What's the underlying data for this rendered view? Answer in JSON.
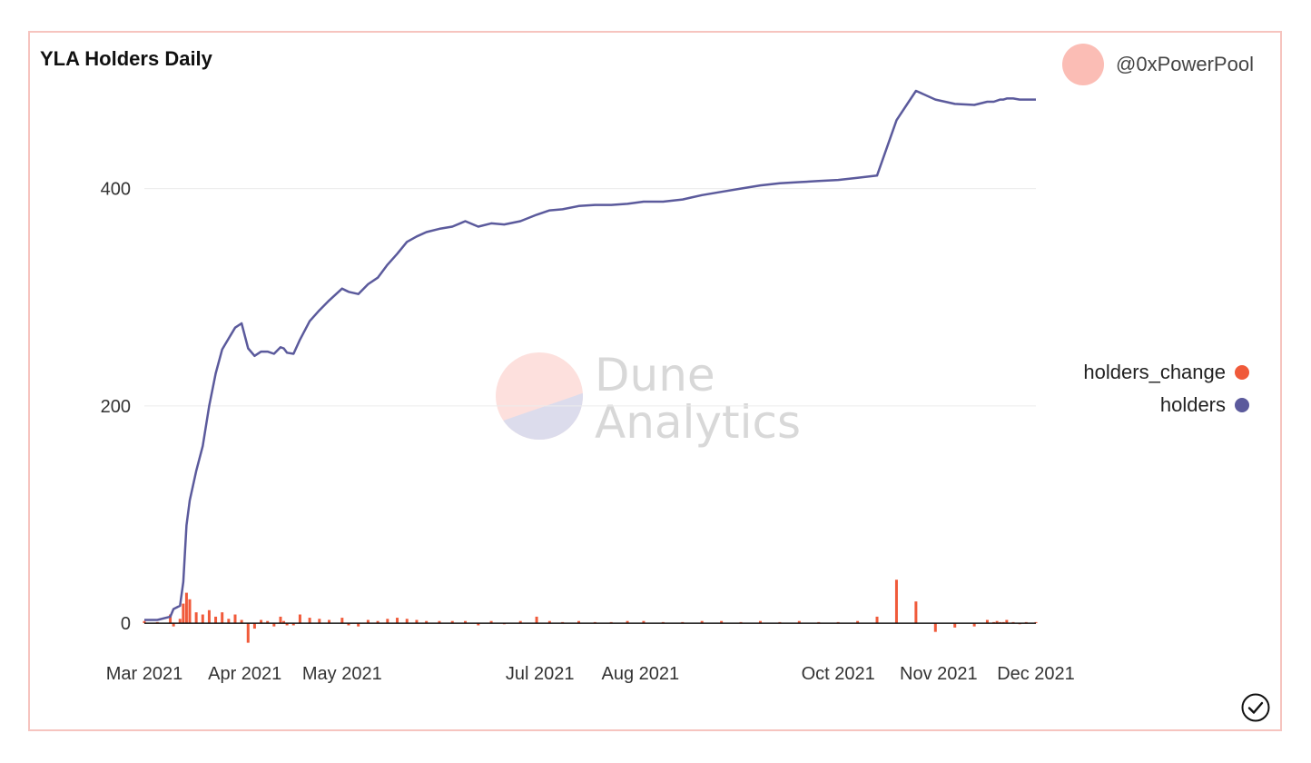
{
  "header": {
    "title": "YLA Holders Daily"
  },
  "author": {
    "name": "@0xPowerPool"
  },
  "watermark": {
    "line1": "Dune",
    "line2": "Analytics"
  },
  "legend": {
    "items": [
      {
        "label": "holders_change",
        "color": "#f05a3a"
      },
      {
        "label": "holders",
        "color": "#5b5a9c"
      }
    ]
  },
  "chart_data": {
    "type": "line",
    "title": "YLA Holders Daily",
    "xlabel": "",
    "ylabel": "",
    "ylim": [
      -20,
      490
    ],
    "xlim": [
      "2021-03-01",
      "2021-12-01"
    ],
    "grid": true,
    "legend_position": "right",
    "yticks": [
      0,
      200,
      400
    ],
    "xticks": [
      "2021-03-01",
      "2021-04-01",
      "2021-05-01",
      "2021-07-01",
      "2021-08-01",
      "2021-10-01",
      "2021-11-01",
      "2021-12-01"
    ],
    "xtick_labels": [
      "Mar 2021",
      "Apr 2021",
      "May 2021",
      "Jul 2021",
      "Aug 2021",
      "Oct 2021",
      "Nov 2021",
      "Dec 2021"
    ],
    "series": [
      {
        "name": "holders",
        "type": "line",
        "color": "#5b5a9c",
        "x": [
          "2021-03-01",
          "2021-03-05",
          "2021-03-09",
          "2021-03-10",
          "2021-03-12",
          "2021-03-13",
          "2021-03-14",
          "2021-03-15",
          "2021-03-17",
          "2021-03-19",
          "2021-03-21",
          "2021-03-23",
          "2021-03-25",
          "2021-03-27",
          "2021-03-29",
          "2021-03-31",
          "2021-04-02",
          "2021-04-04",
          "2021-04-06",
          "2021-04-08",
          "2021-04-10",
          "2021-04-12",
          "2021-04-13",
          "2021-04-14",
          "2021-04-16",
          "2021-04-18",
          "2021-04-21",
          "2021-04-24",
          "2021-04-27",
          "2021-05-01",
          "2021-05-03",
          "2021-05-06",
          "2021-05-09",
          "2021-05-12",
          "2021-05-15",
          "2021-05-18",
          "2021-05-21",
          "2021-05-24",
          "2021-05-27",
          "2021-05-31",
          "2021-06-04",
          "2021-06-08",
          "2021-06-12",
          "2021-06-16",
          "2021-06-20",
          "2021-06-25",
          "2021-06-30",
          "2021-07-04",
          "2021-07-08",
          "2021-07-13",
          "2021-07-18",
          "2021-07-23",
          "2021-07-28",
          "2021-08-02",
          "2021-08-08",
          "2021-08-14",
          "2021-08-20",
          "2021-08-26",
          "2021-09-01",
          "2021-09-07",
          "2021-09-13",
          "2021-09-19",
          "2021-09-25",
          "2021-10-01",
          "2021-10-07",
          "2021-10-13",
          "2021-10-19",
          "2021-10-25",
          "2021-10-31",
          "2021-11-06",
          "2021-11-12",
          "2021-11-16",
          "2021-11-18",
          "2021-11-19",
          "2021-11-20",
          "2021-11-21",
          "2021-11-22",
          "2021-11-24",
          "2021-11-26",
          "2021-11-28",
          "2021-12-01"
        ],
        "values": [
          3,
          3,
          6,
          13,
          16,
          38,
          90,
          113,
          140,
          163,
          200,
          230,
          252,
          262,
          272,
          276,
          253,
          246,
          250,
          250,
          248,
          254,
          253,
          249,
          248,
          261,
          278,
          288,
          297,
          308,
          305,
          303,
          312,
          318,
          330,
          340,
          351,
          356,
          360,
          363,
          365,
          370,
          365,
          368,
          367,
          370,
          376,
          380,
          381,
          384,
          385,
          385,
          386,
          388,
          388,
          390,
          394,
          397,
          400,
          403,
          405,
          406,
          407,
          408,
          410,
          412,
          463,
          490,
          482,
          478,
          477,
          480,
          480,
          481,
          482,
          482,
          483,
          483,
          482,
          482,
          482
        ]
      },
      {
        "name": "holders_change",
        "type": "bar",
        "color": "#f05a3a",
        "x": [
          "2021-03-01",
          "2021-03-05",
          "2021-03-09",
          "2021-03-10",
          "2021-03-12",
          "2021-03-13",
          "2021-03-14",
          "2021-03-15",
          "2021-03-17",
          "2021-03-19",
          "2021-03-21",
          "2021-03-23",
          "2021-03-25",
          "2021-03-27",
          "2021-03-29",
          "2021-03-31",
          "2021-04-02",
          "2021-04-04",
          "2021-04-06",
          "2021-04-08",
          "2021-04-10",
          "2021-04-12",
          "2021-04-13",
          "2021-04-14",
          "2021-04-16",
          "2021-04-18",
          "2021-04-21",
          "2021-04-24",
          "2021-04-27",
          "2021-05-01",
          "2021-05-03",
          "2021-05-06",
          "2021-05-09",
          "2021-05-12",
          "2021-05-15",
          "2021-05-18",
          "2021-05-21",
          "2021-05-24",
          "2021-05-27",
          "2021-05-31",
          "2021-06-04",
          "2021-06-08",
          "2021-06-12",
          "2021-06-16",
          "2021-06-20",
          "2021-06-25",
          "2021-06-30",
          "2021-07-04",
          "2021-07-08",
          "2021-07-13",
          "2021-07-18",
          "2021-07-23",
          "2021-07-28",
          "2021-08-02",
          "2021-08-08",
          "2021-08-14",
          "2021-08-20",
          "2021-08-26",
          "2021-09-01",
          "2021-09-07",
          "2021-09-13",
          "2021-09-19",
          "2021-09-25",
          "2021-10-01",
          "2021-10-07",
          "2021-10-13",
          "2021-10-19",
          "2021-10-25",
          "2021-10-31",
          "2021-11-06",
          "2021-11-12",
          "2021-11-16",
          "2021-11-18",
          "2021-11-19",
          "2021-11-20",
          "2021-11-21",
          "2021-11-22",
          "2021-11-24",
          "2021-11-26",
          "2021-11-28",
          "2021-12-01"
        ],
        "values": [
          2,
          1,
          8,
          -3,
          4,
          18,
          28,
          22,
          10,
          8,
          12,
          6,
          10,
          4,
          8,
          3,
          -18,
          -5,
          3,
          2,
          -3,
          6,
          2,
          -2,
          -2,
          8,
          5,
          4,
          3,
          5,
          -2,
          -3,
          3,
          2,
          4,
          5,
          4,
          3,
          2,
          2,
          2,
          2,
          -2,
          2,
          -1,
          2,
          6,
          2,
          1,
          2,
          1,
          1,
          2,
          2,
          1,
          1,
          2,
          2,
          1,
          2,
          1,
          2,
          1,
          1,
          2,
          6,
          40,
          20,
          -8,
          -4,
          -3,
          3,
          1,
          2,
          1,
          1,
          3,
          1,
          -1,
          1,
          1
        ]
      }
    ]
  }
}
